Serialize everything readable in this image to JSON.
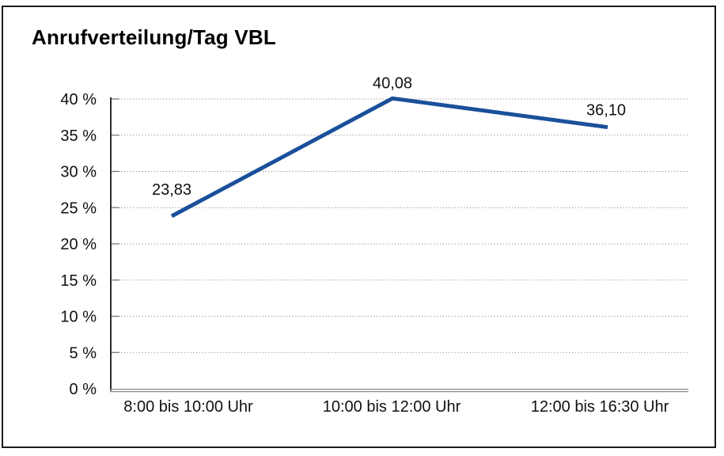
{
  "window": {
    "background": "#ffffff",
    "border_color": "#1b1b1b"
  },
  "colors": {
    "line": "#1a509b",
    "grid": "#8a8a8a",
    "tick": "#6b6b6b",
    "y_axis": "#2e2e2e",
    "x_axis": "#7a7a7a",
    "text": "#111111",
    "title_text": "#000000"
  },
  "chart_data": {
    "type": "line",
    "title": "Anrufverteilung/Tag VBL",
    "xlabel": "",
    "ylabel": "",
    "categories": [
      "8:00 bis 10:00 Uhr",
      "10:00 bis 12:00 Uhr",
      "12:00 bis 16:30 Uhr"
    ],
    "series": [
      {
        "name": "Anrufverteilung/Tag VBL",
        "values": [
          23.83,
          40.08,
          36.1
        ],
        "value_labels": [
          "23,83",
          "40,08",
          "36,10"
        ]
      }
    ],
    "ylim": [
      0,
      40
    ],
    "y_tick_step": 5,
    "y_ticks": [
      {
        "value": 40,
        "label": "40 %"
      },
      {
        "value": 35,
        "label": "35 %"
      },
      {
        "value": 30,
        "label": "30 %"
      },
      {
        "value": 25,
        "label": "25 %"
      },
      {
        "value": 20,
        "label": "20 %"
      },
      {
        "value": 15,
        "label": "15 %"
      },
      {
        "value": 10,
        "label": "10 %"
      },
      {
        "value": 5,
        "label": "5 %"
      },
      {
        "value": 0,
        "label": "0 %"
      }
    ],
    "grid": "horizontal-dotted",
    "legend": "none"
  }
}
